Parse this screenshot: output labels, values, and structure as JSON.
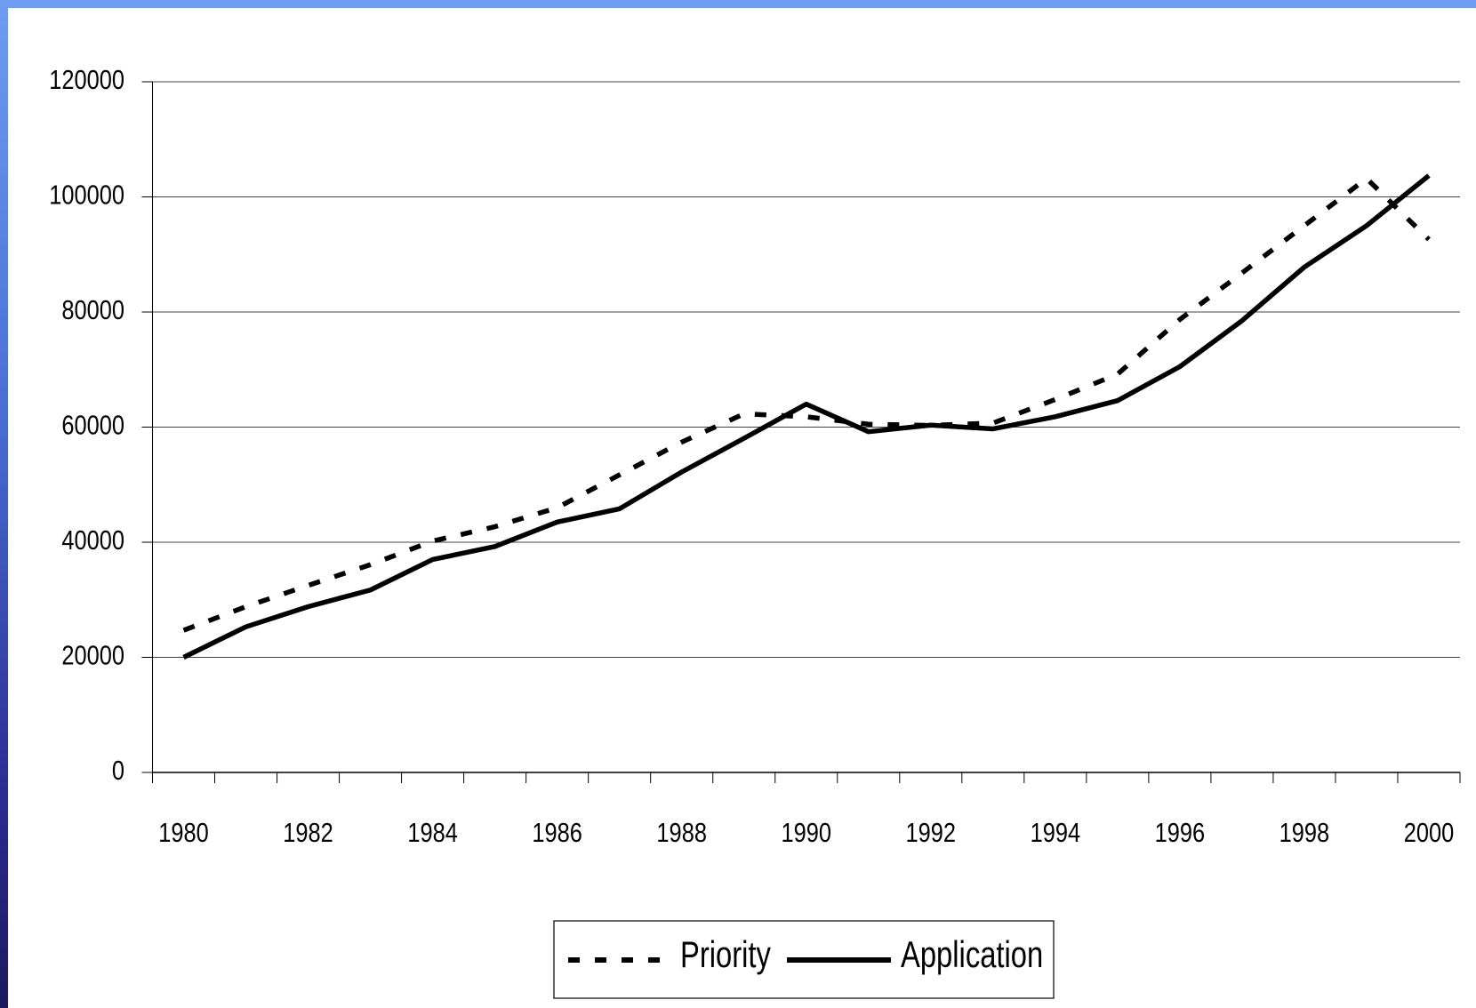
{
  "chart_data": {
    "type": "line",
    "categories": [
      "1980",
      null,
      "1982",
      null,
      "1984",
      null,
      "1986",
      null,
      "1988",
      null,
      "1990",
      null,
      "1992",
      null,
      "1994",
      null,
      "1996",
      null,
      "1998",
      null,
      "2000"
    ],
    "series": [
      {
        "name": "Priority",
        "color": "#000000",
        "style": "dashed",
        "values": [
          24700,
          28800,
          32500,
          36100,
          40200,
          42700,
          46000,
          51700,
          57400,
          62300,
          61800,
          60500,
          60300,
          60700,
          64800,
          69200,
          78700,
          86800,
          95000,
          103200,
          92600
        ]
      },
      {
        "name": "Application",
        "color": "#000000",
        "style": "solid",
        "values": [
          20000,
          25300,
          28800,
          31700,
          37000,
          39250,
          43500,
          45800,
          52200,
          58050,
          64000,
          59200,
          60350,
          59700,
          61800,
          64600,
          70500,
          78500,
          87800,
          95000,
          103700
        ]
      }
    ],
    "ylim": [
      0,
      120000
    ],
    "yticks": [
      0,
      20000,
      40000,
      60000,
      80000,
      100000,
      120000
    ],
    "grid": true,
    "legend": "bottom"
  }
}
